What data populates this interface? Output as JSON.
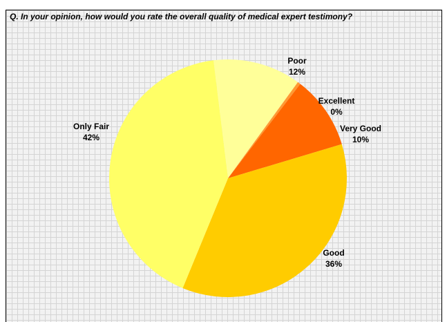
{
  "chart_data": {
    "type": "pie",
    "title": "Q. In your opinion, how would you rate the overall quality of medical expert testimony?",
    "slices": [
      {
        "label": "Poor",
        "value": 12,
        "value_label": "12%",
        "color": "#ffff99"
      },
      {
        "label": "Excellent",
        "value": 0.4,
        "value_label": "0%",
        "color": "#ff9933"
      },
      {
        "label": "Very Good",
        "value": 10,
        "value_label": "10%",
        "color": "#ff6600"
      },
      {
        "label": "Good",
        "value": 36,
        "value_label": "36%",
        "color": "#ffcc00"
      },
      {
        "label": "Only Fair",
        "value": 42,
        "value_label": "42%",
        "color": "#ffff66"
      }
    ],
    "legend": "none"
  }
}
